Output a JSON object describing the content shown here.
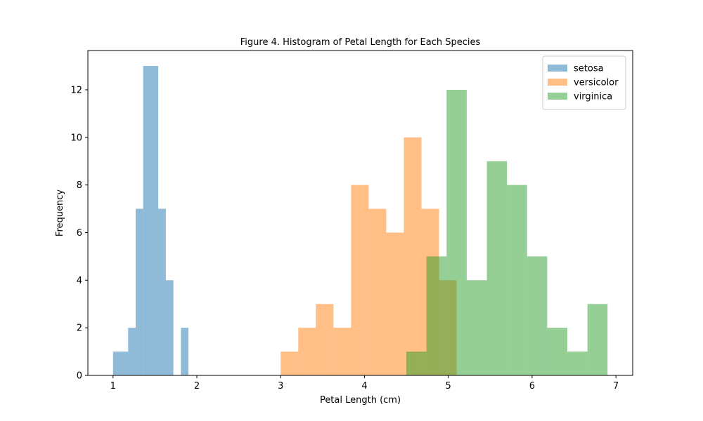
{
  "chart_data": {
    "type": "bar",
    "title": "Figure 4. Histogram of Petal Length for Each Species",
    "xlabel": "Petal Length (cm)",
    "ylabel": "Frequency",
    "xlim": [
      0.7,
      7.2
    ],
    "ylim": [
      0,
      13.65
    ],
    "xticks": [
      1,
      2,
      3,
      4,
      5,
      6,
      7
    ],
    "yticks": [
      0,
      2,
      4,
      6,
      8,
      10,
      12
    ],
    "grid": false,
    "legend_position": "top-right",
    "alpha": 0.5,
    "series": [
      {
        "name": "setosa",
        "color": "#1f77b4",
        "bins": [
          {
            "x0": 1.0,
            "x1": 1.18,
            "count": 1
          },
          {
            "x0": 1.18,
            "x1": 1.27,
            "count": 2
          },
          {
            "x0": 1.27,
            "x1": 1.36,
            "count": 7
          },
          {
            "x0": 1.36,
            "x1": 1.54,
            "count": 13
          },
          {
            "x0": 1.54,
            "x1": 1.63,
            "count": 7
          },
          {
            "x0": 1.63,
            "x1": 1.72,
            "count": 4
          },
          {
            "x0": 1.81,
            "x1": 1.9,
            "count": 2
          }
        ]
      },
      {
        "name": "versicolor",
        "color": "#ff7f0e",
        "bins": [
          {
            "x0": 3.0,
            "x1": 3.21,
            "count": 1
          },
          {
            "x0": 3.21,
            "x1": 3.42,
            "count": 2
          },
          {
            "x0": 3.42,
            "x1": 3.63,
            "count": 3
          },
          {
            "x0": 3.63,
            "x1": 3.84,
            "count": 2
          },
          {
            "x0": 3.84,
            "x1": 4.05,
            "count": 8
          },
          {
            "x0": 4.05,
            "x1": 4.26,
            "count": 7
          },
          {
            "x0": 4.26,
            "x1": 4.47,
            "count": 6
          },
          {
            "x0": 4.47,
            "x1": 4.68,
            "count": 10
          },
          {
            "x0": 4.68,
            "x1": 4.89,
            "count": 7
          },
          {
            "x0": 4.89,
            "x1": 5.1,
            "count": 4
          }
        ]
      },
      {
        "name": "virginica",
        "color": "#2ca02c",
        "bins": [
          {
            "x0": 4.5,
            "x1": 4.74,
            "count": 1
          },
          {
            "x0": 4.74,
            "x1": 4.98,
            "count": 5
          },
          {
            "x0": 4.98,
            "x1": 5.22,
            "count": 12
          },
          {
            "x0": 5.22,
            "x1": 5.46,
            "count": 4
          },
          {
            "x0": 5.46,
            "x1": 5.7,
            "count": 9
          },
          {
            "x0": 5.7,
            "x1": 5.94,
            "count": 8
          },
          {
            "x0": 5.94,
            "x1": 6.18,
            "count": 5
          },
          {
            "x0": 6.18,
            "x1": 6.42,
            "count": 2
          },
          {
            "x0": 6.42,
            "x1": 6.66,
            "count": 1
          },
          {
            "x0": 6.66,
            "x1": 6.9,
            "count": 3
          }
        ]
      }
    ]
  }
}
